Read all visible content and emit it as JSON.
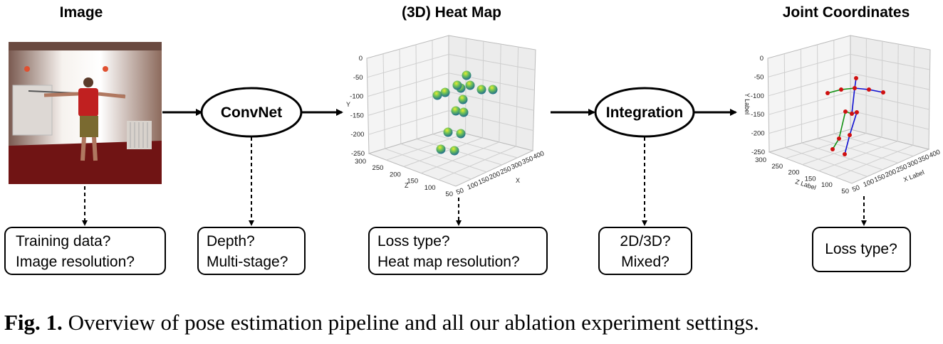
{
  "stages": {
    "image": "Image",
    "heatmap": "(3D) Heat Map",
    "joints": "Joint Coordinates"
  },
  "nodes": {
    "convnet": "ConvNet",
    "integration": "Integration"
  },
  "questions": {
    "image": [
      "Training data?",
      "Image resolution?"
    ],
    "convnet": [
      "Depth?",
      "Multi-stage?"
    ],
    "heatmap": [
      "Loss type?",
      "Heat map resolution?"
    ],
    "integration": [
      "2D/3D?",
      "Mixed?"
    ],
    "joints": [
      "Loss type?"
    ]
  },
  "heatmap_plot": {
    "y_label": "Y",
    "x_label": "X",
    "z_label": "Z",
    "y_ticks": [
      "0",
      "-50",
      "-100",
      "-150",
      "-200",
      "-250"
    ],
    "z_ticks": [
      "300",
      "250",
      "200",
      "150",
      "100",
      "50"
    ],
    "x_ticks": [
      "50",
      "100",
      "150",
      "200",
      "250",
      "300",
      "350",
      "400"
    ]
  },
  "joint_plot": {
    "y_label": "Y Label",
    "x_label": "X Label",
    "z_label": "Z Label",
    "y_ticks": [
      "0",
      "-50",
      "-100",
      "-150",
      "-200",
      "-250"
    ],
    "z_ticks": [
      "300",
      "250",
      "200",
      "150",
      "100",
      "50"
    ],
    "x_ticks": [
      "50",
      "100",
      "150",
      "200",
      "250",
      "300",
      "350",
      "400"
    ]
  },
  "colors": {
    "joint_point": "#d01010",
    "left_limb": "#1010d0",
    "right_limb": "#109010",
    "heat_blob_top": "#d8e020",
    "heat_blob_bottom": "#208a8c"
  },
  "caption": {
    "label": "Fig. 1.",
    "text": " Overview of pose estimation pipeline and all our ablation experiment settings."
  }
}
